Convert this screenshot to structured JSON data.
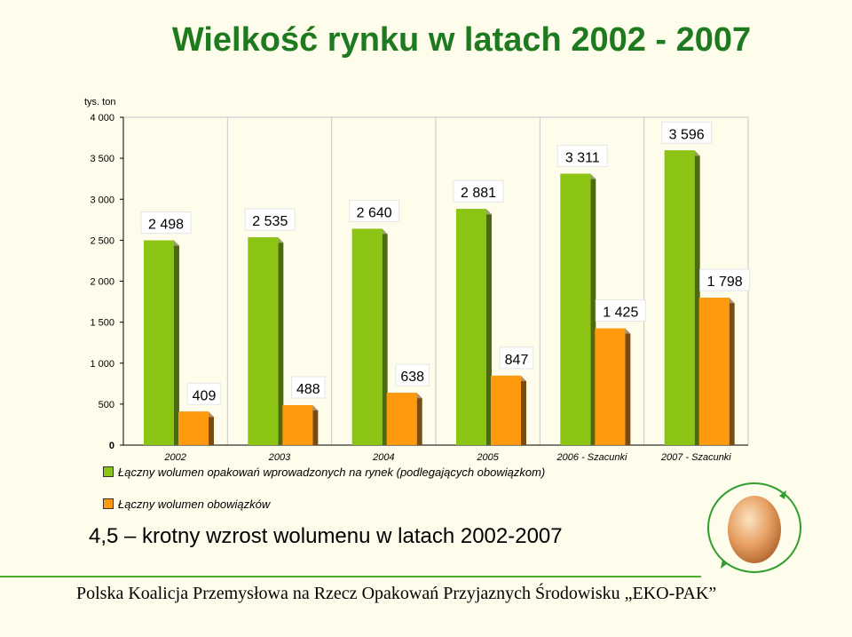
{
  "title": "Wielkość rynku w latach 2002 - 2007",
  "headline": "4,5 – krotny wzrost wolumenu w latach 2002-2007",
  "footer": "Polska Koalicja Przemysłowa na Rzecz Opakowań Przyjaznych Środowisku „EKO-PAK”",
  "colors": {
    "series1": "#8CC414",
    "series1_dark": "#4E6A10",
    "series2": "#FF9A0E",
    "series2_dark": "#7A4A10",
    "title": "#1E7A1E",
    "background": "#FEFCEB"
  },
  "chart_data": {
    "type": "bar",
    "y_unit": "tys. ton",
    "categories": [
      "2002",
      "2003",
      "2004",
      "2005",
      "2006 - Szacunki",
      "2007 - Szacunki"
    ],
    "series": [
      {
        "name": "Łączny wolumen opakowań wprowadzonych na rynek (podlegających obowiązkom)",
        "values": [
          2498,
          2535,
          2640,
          2881,
          3311,
          3596
        ],
        "labels": [
          "2 498",
          "2 535",
          "2 640",
          "2 881",
          "3 311",
          "3 596"
        ]
      },
      {
        "name": "Łączny wolumen obowiązków",
        "values": [
          409,
          488,
          638,
          847,
          1425,
          1798
        ],
        "labels": [
          "409",
          "488",
          "638",
          "847",
          "1 425",
          "1 798"
        ]
      }
    ],
    "ylim": [
      0,
      4000
    ],
    "y_ticks": [
      0,
      500,
      1000,
      1500,
      2000,
      2500,
      3000,
      3500,
      4000
    ],
    "y_tick_labels": [
      "0",
      "500",
      "1 000",
      "1 500",
      "2 000",
      "2 500",
      "3 000",
      "3 500",
      "4 000"
    ],
    "grid": true,
    "legend_position": "bottom-left"
  }
}
